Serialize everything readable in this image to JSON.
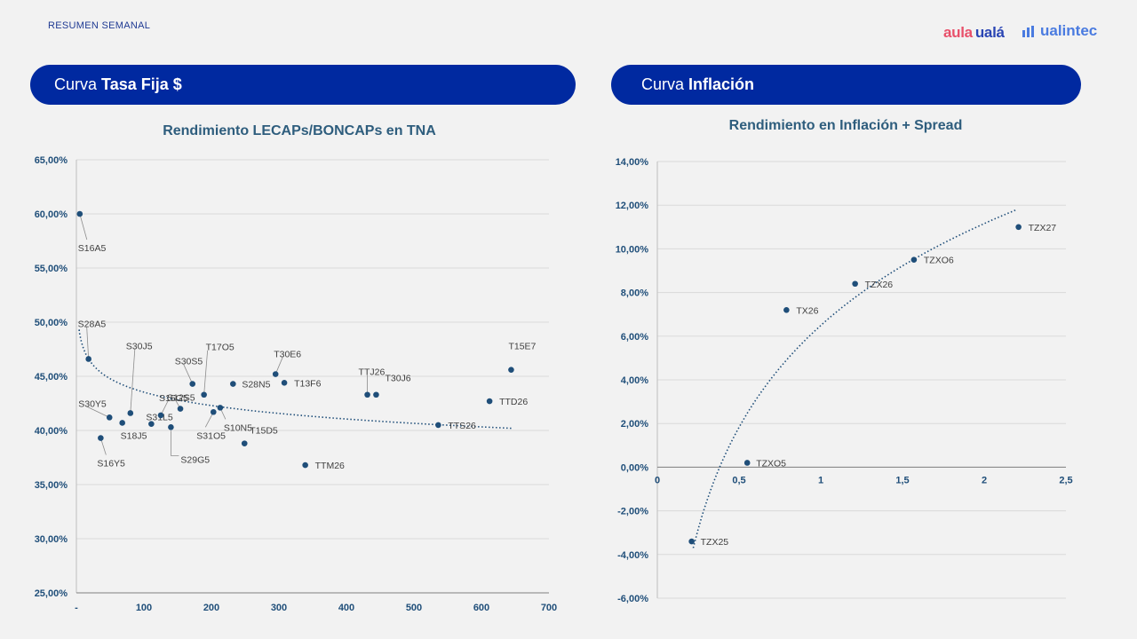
{
  "header": {
    "section_label": "RESUMEN SEMANAL"
  },
  "logos": {
    "aula": "aula",
    "uala": "ualá",
    "ualintec": "ualintec"
  },
  "panels": {
    "left": {
      "title_prefix": "Curva",
      "title_bold": "Tasa Fija $"
    },
    "right": {
      "title_prefix": "Curva",
      "title_bold": "Inflación"
    }
  },
  "colors": {
    "accent": "#0029a0",
    "point": "#1f4e79",
    "axis_text": "#1f4e79",
    "title": "#2e5d7d"
  },
  "chart_data": [
    {
      "type": "scatter",
      "title": "Rendimiento LECAPs/BONCAPs en TNA",
      "xlim": [
        0,
        700
      ],
      "ylim": [
        25,
        65
      ],
      "xticks": [
        0,
        100,
        200,
        300,
        400,
        500,
        600,
        700
      ],
      "xtick_labels": [
        "-",
        "100",
        "200",
        "300",
        "400",
        "500",
        "600",
        "700"
      ],
      "yticks": [
        25,
        30,
        35,
        40,
        45,
        50,
        55,
        60,
        65
      ],
      "ytick_labels": [
        "25,00%",
        "30,00%",
        "35,00%",
        "40,00%",
        "45,00%",
        "50,00%",
        "55,00%",
        "60,00%",
        "65,00%"
      ],
      "grid": true,
      "trendline": {
        "kind": "logarithmic",
        "x_start": 4,
        "x_end": 645,
        "y_start": 49.3,
        "y_end": 40.2
      },
      "points": [
        {
          "label": "S16A5",
          "x": 5,
          "y": 60.0
        },
        {
          "label": "S28A5",
          "x": 18,
          "y": 46.6
        },
        {
          "label": "S16Y5",
          "x": 36,
          "y": 39.3
        },
        {
          "label": "S30Y5",
          "x": 49,
          "y": 41.2
        },
        {
          "label": "S18J5",
          "x": 68,
          "y": 40.7
        },
        {
          "label": "S30J5",
          "x": 80,
          "y": 41.6
        },
        {
          "label": "S31L5",
          "x": 111,
          "y": 40.6
        },
        {
          "label": "S15G5",
          "x": 125,
          "y": 41.4
        },
        {
          "label": "S29G5",
          "x": 140,
          "y": 40.3
        },
        {
          "label": "S12S5",
          "x": 154,
          "y": 42.0
        },
        {
          "label": "S30S5",
          "x": 172,
          "y": 44.3
        },
        {
          "label": "T17O5",
          "x": 189,
          "y": 43.3
        },
        {
          "label": "S31O5",
          "x": 203,
          "y": 41.7
        },
        {
          "label": "S10N5",
          "x": 213,
          "y": 42.1
        },
        {
          "label": "S28N5",
          "x": 232,
          "y": 44.3
        },
        {
          "label": "T15D5",
          "x": 249,
          "y": 38.8
        },
        {
          "label": "T30E6",
          "x": 295,
          "y": 45.2
        },
        {
          "label": "T13F6",
          "x": 308,
          "y": 44.4
        },
        {
          "label": "TTM26",
          "x": 339,
          "y": 36.8
        },
        {
          "label": "TTJ26",
          "x": 431,
          "y": 43.3
        },
        {
          "label": "T30J6",
          "x": 444,
          "y": 43.3
        },
        {
          "label": "TTS26",
          "x": 536,
          "y": 40.5
        },
        {
          "label": "TTD26",
          "x": 612,
          "y": 42.7
        },
        {
          "label": "T15E7",
          "x": 644,
          "y": 45.6
        }
      ]
    },
    {
      "type": "scatter",
      "title": "Rendimiento en Inflación + Spread",
      "xlim": [
        0,
        2.5
      ],
      "ylim": [
        -6,
        14
      ],
      "xticks": [
        0,
        0.5,
        1,
        1.5,
        2,
        2.5
      ],
      "xtick_labels": [
        "0",
        "0,5",
        "1",
        "1,5",
        "2",
        "2,5"
      ],
      "yticks": [
        -6,
        -4,
        -2,
        0,
        2,
        4,
        6,
        8,
        10,
        12,
        14
      ],
      "ytick_labels": [
        "-6,00%",
        "-4,00%",
        "-2,00%",
        "0,00%",
        "2,00%",
        "4,00%",
        "6,00%",
        "8,00%",
        "10,00%",
        "12,00%",
        "14,00%"
      ],
      "grid": true,
      "trendline": {
        "kind": "logarithmic",
        "x_start": 0.22,
        "x_end": 2.2,
        "y_start": -3.7,
        "y_end": 11.8
      },
      "points": [
        {
          "label": "TZX25",
          "x": 0.21,
          "y": -3.4
        },
        {
          "label": "TZXO5",
          "x": 0.55,
          "y": 0.2
        },
        {
          "label": "TX26",
          "x": 0.79,
          "y": 7.2
        },
        {
          "label": "TZX26",
          "x": 1.21,
          "y": 8.4
        },
        {
          "label": "TZXO6",
          "x": 1.57,
          "y": 9.5
        },
        {
          "label": "TZX27",
          "x": 2.21,
          "y": 11.0
        }
      ]
    }
  ]
}
